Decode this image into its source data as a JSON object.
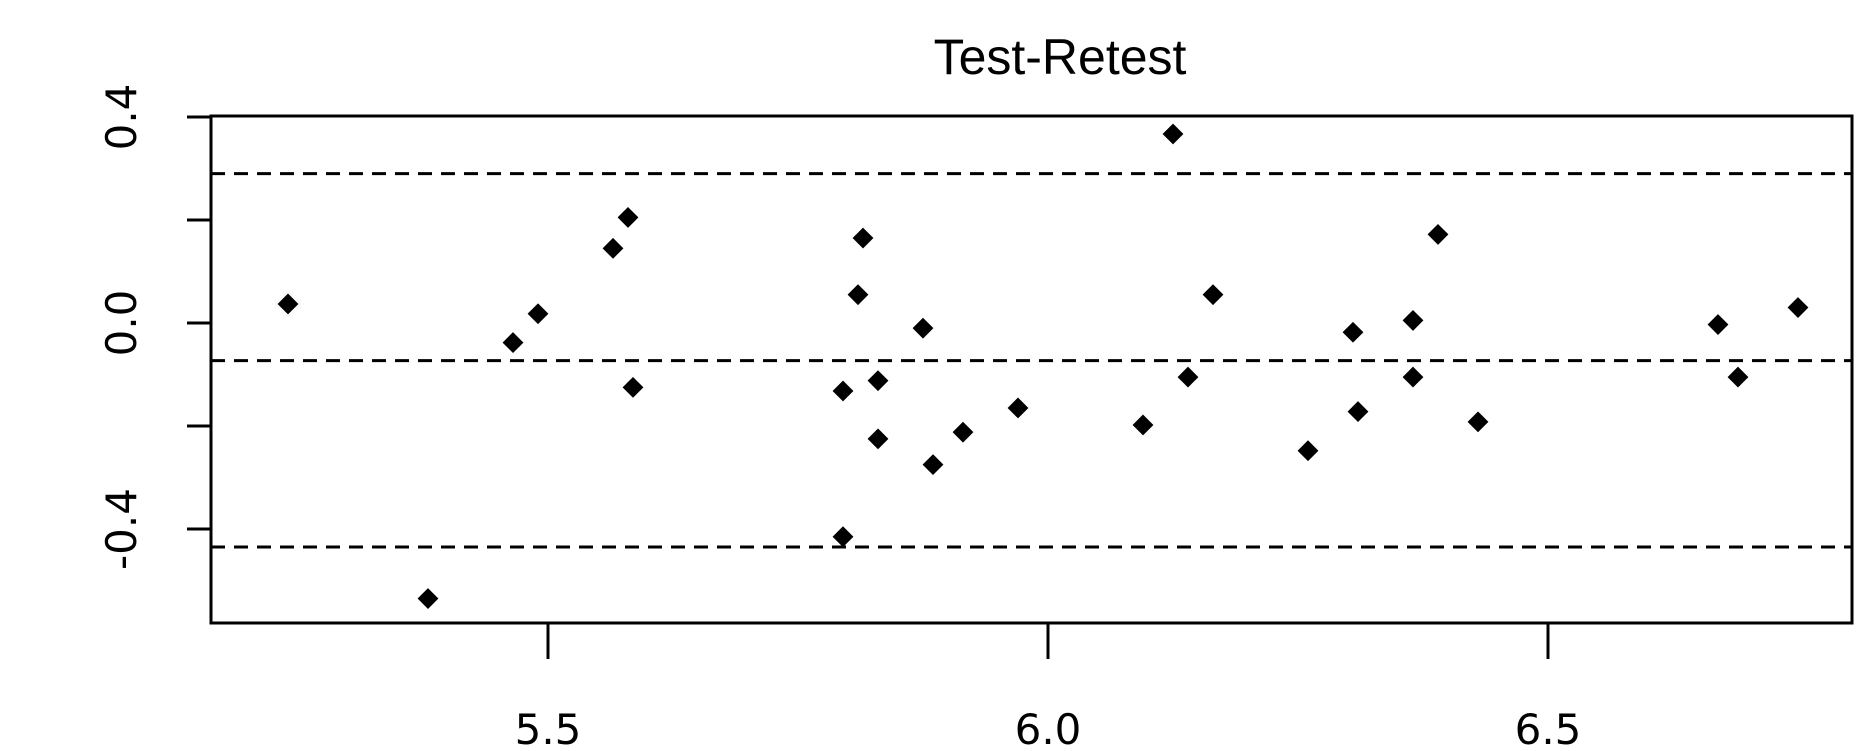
{
  "chart_data": {
    "type": "scatter",
    "title": "Test-Retest",
    "xlabel": "",
    "ylabel": "",
    "xlim": [
      5.18,
      6.82
    ],
    "ylim": [
      -0.58,
      0.4
    ],
    "x_ticks": [
      {
        "value": 5.5,
        "label": "5.5"
      },
      {
        "value": 6.0,
        "label": "6.0"
      },
      {
        "value": 6.5,
        "label": "6.5"
      }
    ],
    "y_ticks": [
      {
        "value": -0.4,
        "label": "-0.4",
        "labeled": true
      },
      {
        "value": -0.2,
        "label": "",
        "labeled": false
      },
      {
        "value": 0.0,
        "label": "0.0",
        "labeled": true
      },
      {
        "value": 0.2,
        "label": "",
        "labeled": false
      },
      {
        "value": 0.4,
        "label": "0.4",
        "labeled": true
      }
    ],
    "reference_lines": [
      {
        "y": 0.29,
        "style": "dashed"
      },
      {
        "y": -0.073,
        "style": "dashed"
      },
      {
        "y": -0.435,
        "style": "dashed"
      }
    ],
    "grid": false,
    "points": [
      {
        "x": 5.24,
        "y": 0.037
      },
      {
        "x": 5.38,
        "y": -0.535
      },
      {
        "x": 5.465,
        "y": -0.038
      },
      {
        "x": 5.49,
        "y": 0.018
      },
      {
        "x": 5.565,
        "y": 0.145
      },
      {
        "x": 5.58,
        "y": 0.205
      },
      {
        "x": 5.585,
        "y": -0.125
      },
      {
        "x": 5.795,
        "y": -0.415
      },
      {
        "x": 5.795,
        "y": -0.132
      },
      {
        "x": 5.81,
        "y": 0.055
      },
      {
        "x": 5.815,
        "y": 0.165
      },
      {
        "x": 5.83,
        "y": -0.112
      },
      {
        "x": 5.83,
        "y": -0.225
      },
      {
        "x": 5.875,
        "y": -0.01
      },
      {
        "x": 5.885,
        "y": -0.275
      },
      {
        "x": 5.915,
        "y": -0.212
      },
      {
        "x": 5.97,
        "y": -0.165
      },
      {
        "x": 6.095,
        "y": -0.198
      },
      {
        "x": 6.125,
        "y": 0.367
      },
      {
        "x": 6.14,
        "y": -0.105
      },
      {
        "x": 6.165,
        "y": 0.055
      },
      {
        "x": 6.26,
        "y": -0.248
      },
      {
        "x": 6.305,
        "y": -0.018
      },
      {
        "x": 6.31,
        "y": -0.172
      },
      {
        "x": 6.365,
        "y": 0.005
      },
      {
        "x": 6.365,
        "y": -0.105
      },
      {
        "x": 6.39,
        "y": 0.172
      },
      {
        "x": 6.43,
        "y": -0.192
      },
      {
        "x": 6.67,
        "y": -0.003
      },
      {
        "x": 6.69,
        "y": -0.105
      },
      {
        "x": 6.75,
        "y": 0.03
      }
    ],
    "marker_color": "#000000"
  }
}
